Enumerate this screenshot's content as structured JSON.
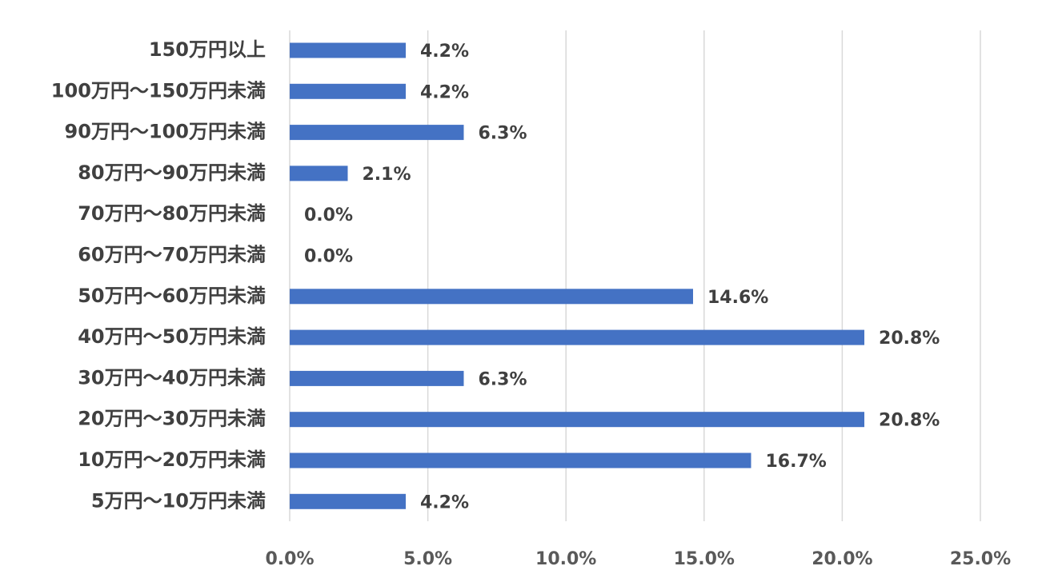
{
  "chart_data": {
    "type": "bar",
    "orientation": "horizontal",
    "title": "",
    "xlabel": "",
    "ylabel": "",
    "categories": [
      "150万円以上",
      "100万円～150万円未満",
      "90万円～100万円未満",
      "80万円～90万円未満",
      "70万円～80万円未満",
      "60万円～70万円未満",
      "50万円～60万円未満",
      "40万円～50万円未満",
      "30万円～40万円未満",
      "20万円～30万円未満",
      "10万円～20万円未満",
      "5万円～10万円未満"
    ],
    "values": [
      4.2,
      4.2,
      6.3,
      2.1,
      0.0,
      0.0,
      14.6,
      20.8,
      6.3,
      20.8,
      16.7,
      4.2
    ],
    "data_labels": [
      "4.2%",
      "4.2%",
      "6.3%",
      "2.1%",
      "0.0%",
      "0.0%",
      "14.6%",
      "20.8%",
      "6.3%",
      "20.8%",
      "16.7%",
      "4.2%"
    ],
    "xlim": [
      0,
      25
    ],
    "x_ticks": [
      0,
      5,
      10,
      15,
      20,
      25
    ],
    "x_tick_labels": [
      "0.0%",
      "5.0%",
      "10.0%",
      "15.0%",
      "20.0%",
      "25.0%"
    ],
    "grid": "vertical",
    "legend": "none",
    "colors": {
      "bar": "#4472c4",
      "grid": "#d9d9d9",
      "label_text": "#404040",
      "tick_text": "#595959"
    }
  }
}
